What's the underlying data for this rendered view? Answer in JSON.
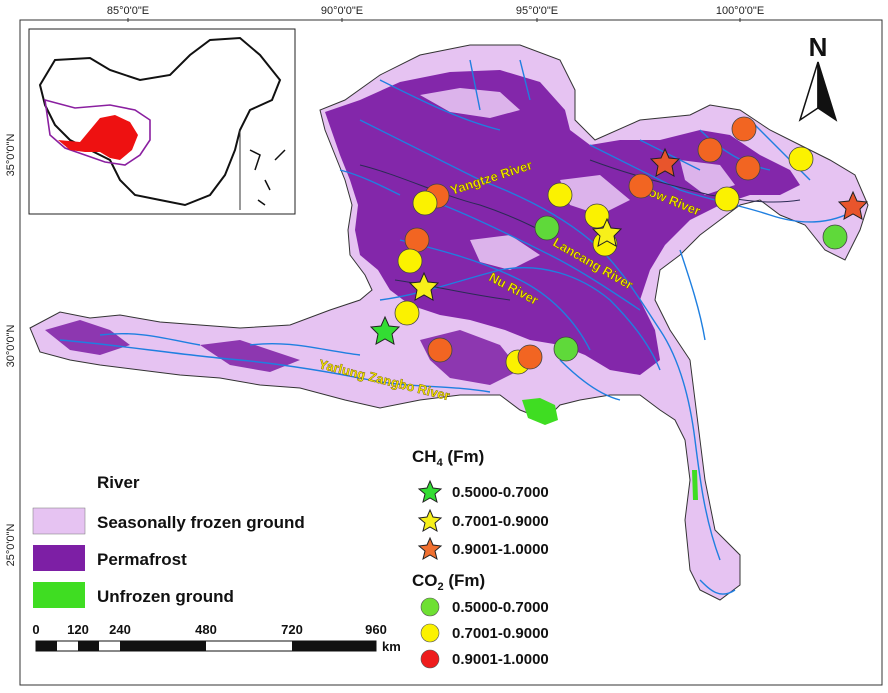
{
  "axes": {
    "top_ticks": [
      "85°0'0\"E",
      "90°0'0\"E",
      "95°0'0\"E",
      "100°0'0\"E"
    ],
    "left_ticks": [
      "35°0'0\"N",
      "30°0'0\"N",
      "25°0'0\"N"
    ]
  },
  "north_arrow": {
    "label": "N"
  },
  "rivers": [
    {
      "label": "Yangtze River"
    },
    {
      "label": "Yellow River"
    },
    {
      "label": "Lancang River"
    },
    {
      "label": "Nu River"
    },
    {
      "label": "Yarlung Zangbo River"
    }
  ],
  "legend_left": {
    "river": "River",
    "items": [
      {
        "label": "Seasonally frozen ground",
        "color": "#e6c3f2"
      },
      {
        "label": "Permafrost",
        "color": "#7d1fa5"
      },
      {
        "label": "Unfrozen ground",
        "color": "#3fdd22"
      }
    ],
    "river_color": "#1f7fe0"
  },
  "legend_ch4": {
    "title_main": "CH",
    "title_sub": "4",
    "title_unit": " (Fm)",
    "items": [
      {
        "range": "0.5000-0.7000",
        "color": "#33dd33"
      },
      {
        "range": "0.7001-0.9000",
        "color": "#f7f01a"
      },
      {
        "range": "0.9001-1.0000",
        "color": "#f07030"
      }
    ]
  },
  "legend_co2": {
    "title_main": "CO",
    "title_sub": "2",
    "title_unit": " (Fm)",
    "items": [
      {
        "range": "0.5000-0.7000",
        "color": "#6ee032"
      },
      {
        "range": "0.7001-0.9000",
        "color": "#fbf200"
      },
      {
        "range": "0.9001-1.0000",
        "color": "#ee1c1c"
      }
    ]
  },
  "scale_bar": {
    "labels": [
      "0",
      "120",
      "240",
      "480",
      "720",
      "960"
    ],
    "unit": "km"
  },
  "colors": {
    "co2_orange": "#f26522",
    "co2_yellow": "#fbf200",
    "co2_green": "#5fd93a",
    "ch4_green": "#33dd33",
    "ch4_yellow": "#f7f01a",
    "ch4_red": "#e8552c"
  }
}
